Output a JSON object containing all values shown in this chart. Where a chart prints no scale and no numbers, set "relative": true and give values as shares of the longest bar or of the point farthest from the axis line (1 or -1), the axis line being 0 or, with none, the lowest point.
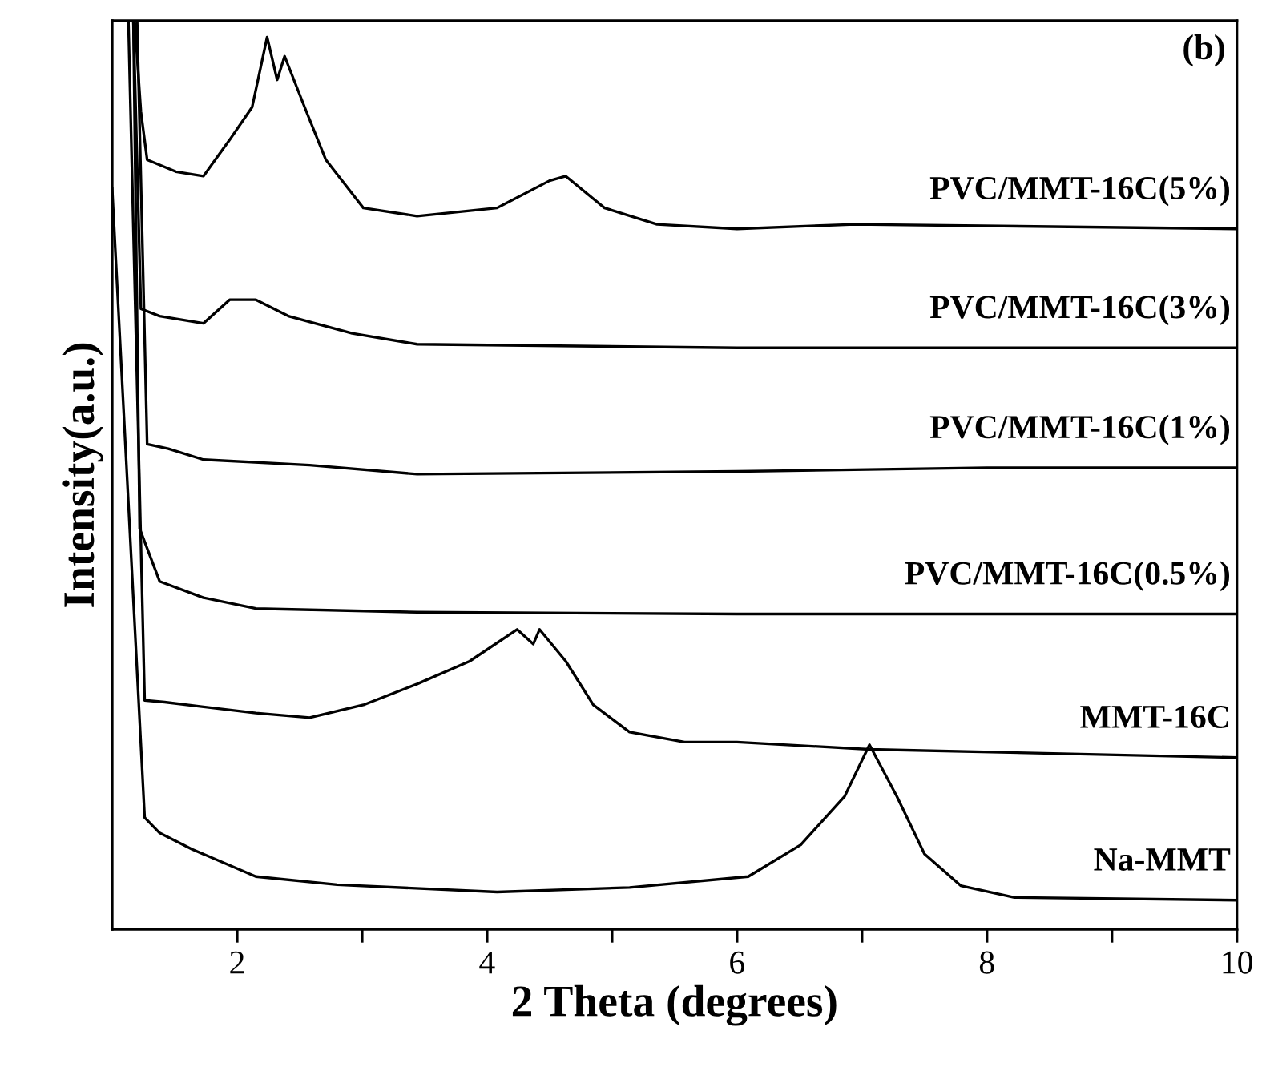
{
  "chart_data": {
    "type": "line",
    "relative": true,
    "xlabel": "2 Theta (degrees)",
    "ylabel": "Intensity(a.u.)",
    "annotations": [
      "(b)"
    ],
    "xlim": [
      1,
      10
    ],
    "xticks": [
      2,
      {
        "value": 3,
        "label": null
      },
      4,
      {
        "value": 5,
        "label": null
      },
      6,
      {
        "value": 7,
        "label": null
      },
      8,
      {
        "value": 9,
        "label": null
      },
      10
    ],
    "grid": false,
    "marker": "none",
    "line_style": "solid",
    "series": [
      {
        "name": "PVC/MMT-16C(5%)",
        "color": "#000000",
        "x": [
          1.18,
          1.23,
          1.28,
          1.51,
          1.73,
          1.94,
          2.12,
          2.24,
          2.32,
          2.38,
          2.54,
          2.71,
          3.01,
          3.44,
          4.08,
          4.5,
          4.63,
          4.94,
          5.36,
          6.0,
          6.94,
          10.0
        ],
        "values": [
          1.0,
          0.9,
          0.847,
          0.834,
          0.829,
          0.869,
          0.905,
          0.982,
          0.935,
          0.961,
          0.905,
          0.847,
          0.794,
          0.785,
          0.794,
          0.824,
          0.829,
          0.794,
          0.776,
          0.771,
          0.776,
          0.771
        ]
      },
      {
        "name": "PVC/MMT-16C(3%)",
        "color": "#000000",
        "x": [
          1.17,
          1.23,
          1.38,
          1.73,
          1.94,
          2.15,
          2.41,
          2.92,
          3.44,
          6.0,
          10.0
        ],
        "values": [
          1.0,
          0.683,
          0.675,
          0.667,
          0.693,
          0.693,
          0.675,
          0.656,
          0.644,
          0.64,
          0.64
        ]
      },
      {
        "name": "PVC/MMT-16C(1%)",
        "color": "#000000",
        "x": [
          1.2,
          1.28,
          1.45,
          1.73,
          2.58,
          3.44,
          6.0,
          8.0,
          10.0
        ],
        "values": [
          1.0,
          0.534,
          0.529,
          0.517,
          0.511,
          0.501,
          0.504,
          0.508,
          0.508
        ]
      },
      {
        "name": "PVC/MMT-16C(0.5%)",
        "color": "#000000",
        "x": [
          1.17,
          1.22,
          1.38,
          1.73,
          2.15,
          3.44,
          6.0,
          10.0
        ],
        "values": [
          1.0,
          0.441,
          0.383,
          0.365,
          0.353,
          0.349,
          0.347,
          0.347
        ]
      },
      {
        "name": "MMT-16C",
        "color": "#000000",
        "x": [
          1.13,
          1.26,
          1.42,
          2.15,
          2.58,
          3.01,
          3.44,
          3.86,
          4.24,
          4.37,
          4.42,
          4.63,
          4.85,
          5.14,
          5.58,
          6.0,
          7.06,
          10.0
        ],
        "values": [
          1.0,
          0.252,
          0.25,
          0.238,
          0.233,
          0.247,
          0.27,
          0.295,
          0.33,
          0.314,
          0.33,
          0.295,
          0.247,
          0.217,
          0.206,
          0.206,
          0.198,
          0.189
        ]
      },
      {
        "name": "Na-MMT",
        "color": "#000000",
        "x": [
          1.0,
          1.26,
          1.38,
          1.64,
          2.15,
          2.8,
          4.08,
          5.14,
          6.09,
          6.51,
          6.86,
          7.06,
          7.28,
          7.5,
          7.79,
          8.22,
          10.0
        ],
        "values": [
          0.815,
          0.123,
          0.106,
          0.088,
          0.058,
          0.049,
          0.041,
          0.046,
          0.058,
          0.093,
          0.146,
          0.203,
          0.146,
          0.083,
          0.048,
          0.035,
          0.032
        ]
      }
    ]
  }
}
